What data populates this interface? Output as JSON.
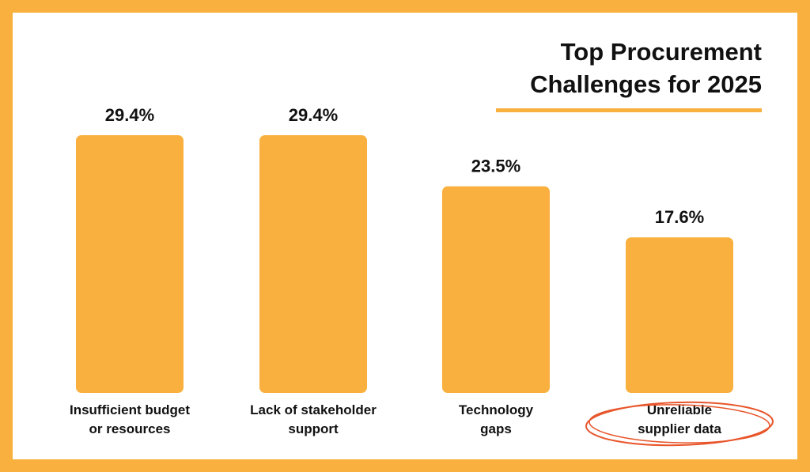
{
  "chart_data": {
    "type": "bar",
    "title_lines": [
      "Top Procurement",
      "Challenges for 2025"
    ],
    "categories": [
      [
        "Insufficient budget",
        "or resources"
      ],
      [
        "Lack of stakeholder",
        "support"
      ],
      [
        "Technology",
        "gaps"
      ],
      [
        "Unreliable",
        "supplier data"
      ]
    ],
    "values": [
      29.4,
      29.4,
      23.5,
      17.6
    ],
    "value_labels": [
      "29.4%",
      "29.4%",
      "23.5%",
      "17.6%"
    ],
    "highlighted_category_index": 3,
    "xlabel": "",
    "ylabel": "",
    "grid": false,
    "legend": "none"
  },
  "colors": {
    "bar": "#f9b03f",
    "frame": "#f9b03f",
    "title_underline": "#f9b03f",
    "highlight_circle": "#e8552a",
    "text": "#111111",
    "background": "#ffffff"
  }
}
